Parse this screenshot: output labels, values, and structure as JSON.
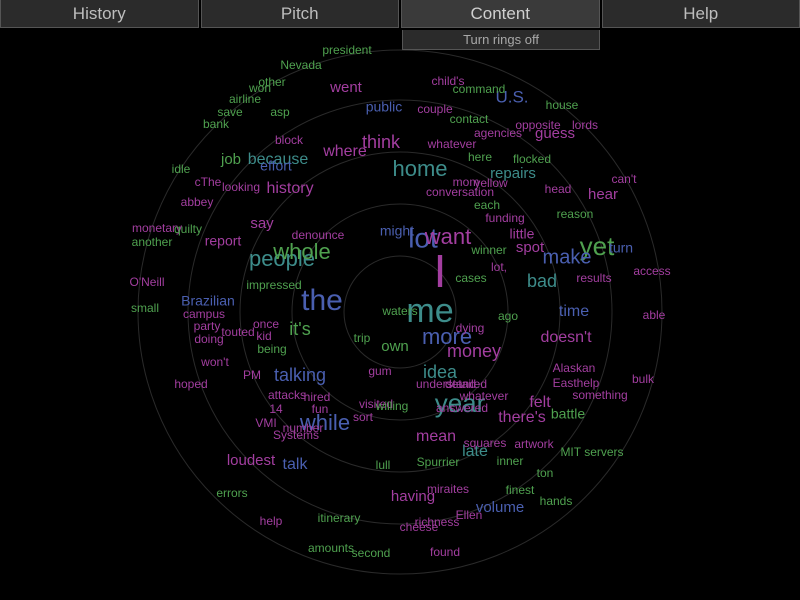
{
  "tabs": [
    {
      "label": "History",
      "active": false
    },
    {
      "label": "Pitch",
      "active": false
    },
    {
      "label": "Content",
      "active": true
    },
    {
      "label": "Help",
      "active": false
    }
  ],
  "content_menu": {
    "option": "Turn rings off"
  },
  "colors": {
    "green": "#4fa14f",
    "purple": "#a33ea0",
    "blue": "#4a5fb0",
    "teal": "#3d8c8a",
    "ring": "#2a2a2a",
    "background": "#000000"
  },
  "words": [
    {
      "text": "I",
      "color": "purple",
      "size": 46
    },
    {
      "text": "me",
      "color": "teal",
      "size": 34
    },
    {
      "text": "lot",
      "color": "blue",
      "size": 28
    },
    {
      "text": "want",
      "color": "purple",
      "size": 22
    },
    {
      "text": "the",
      "color": "blue",
      "size": 30
    },
    {
      "text": "people",
      "color": "teal",
      "size": 22
    },
    {
      "text": "whole",
      "color": "green",
      "size": 22
    },
    {
      "text": "yet",
      "color": "green",
      "size": 26
    },
    {
      "text": "year",
      "color": "teal",
      "size": 26
    },
    {
      "text": "more",
      "color": "blue",
      "size": 22
    },
    {
      "text": "money",
      "color": "purple",
      "size": 18
    },
    {
      "text": "idea",
      "color": "teal",
      "size": 18
    },
    {
      "text": "while",
      "color": "blue",
      "size": 22
    },
    {
      "text": "home",
      "color": "teal",
      "size": 22
    },
    {
      "text": "think",
      "color": "purple",
      "size": 18
    },
    {
      "text": "because",
      "color": "teal",
      "size": 16
    },
    {
      "text": "history",
      "color": "purple",
      "size": 16
    },
    {
      "text": "where",
      "color": "purple",
      "size": 16
    },
    {
      "text": "it's",
      "color": "green",
      "size": 18
    },
    {
      "text": "talking",
      "color": "blue",
      "size": 18
    },
    {
      "text": "make",
      "color": "blue",
      "size": 20
    },
    {
      "text": "bad",
      "color": "teal",
      "size": 18
    },
    {
      "text": "time",
      "color": "blue",
      "size": 16
    },
    {
      "text": "doesn't",
      "color": "purple",
      "size": 16
    },
    {
      "text": "there's",
      "color": "purple",
      "size": 16
    },
    {
      "text": "felt",
      "color": "purple",
      "size": 16
    },
    {
      "text": "battle",
      "color": "green",
      "size": 14
    },
    {
      "text": "mean",
      "color": "purple",
      "size": 16
    },
    {
      "text": "late",
      "color": "teal",
      "size": 16
    },
    {
      "text": "volume",
      "color": "blue",
      "size": 15
    },
    {
      "text": "having",
      "color": "purple",
      "size": 15
    },
    {
      "text": "loudest",
      "color": "purple",
      "size": 15
    },
    {
      "text": "talk",
      "color": "blue",
      "size": 16
    },
    {
      "text": "U.S.",
      "color": "blue",
      "size": 17
    },
    {
      "text": "guess",
      "color": "purple",
      "size": 15
    },
    {
      "text": "hear",
      "color": "purple",
      "size": 15
    },
    {
      "text": "repairs",
      "color": "teal",
      "size": 15
    },
    {
      "text": "spot",
      "color": "purple",
      "size": 15
    },
    {
      "text": "little",
      "color": "purple",
      "size": 14
    },
    {
      "text": "turn",
      "color": "blue",
      "size": 14
    },
    {
      "text": "access",
      "color": "purple",
      "size": 12
    },
    {
      "text": "say",
      "color": "purple",
      "size": 15
    },
    {
      "text": "job",
      "color": "green",
      "size": 15
    },
    {
      "text": "effort",
      "color": "blue",
      "size": 14
    },
    {
      "text": "public",
      "color": "blue",
      "size": 14
    },
    {
      "text": "went",
      "color": "purple",
      "size": 15
    },
    {
      "text": "own",
      "color": "green",
      "size": 15
    },
    {
      "text": "might",
      "color": "blue",
      "size": 14
    },
    {
      "text": "report",
      "color": "purple",
      "size": 14
    },
    {
      "text": "Brazilian",
      "color": "blue",
      "size": 14
    },
    {
      "text": "dying",
      "color": "purple",
      "size": 12
    },
    {
      "text": "president",
      "color": "green",
      "size": 12
    },
    {
      "text": "Nevada",
      "color": "green",
      "size": 12
    },
    {
      "text": "airline",
      "color": "green",
      "size": 12
    },
    {
      "text": "bank",
      "color": "green",
      "size": 12
    },
    {
      "text": "idle",
      "color": "green",
      "size": 12
    },
    {
      "text": "monetary",
      "color": "purple",
      "size": 12
    },
    {
      "text": "another",
      "color": "green",
      "size": 12
    },
    {
      "text": "O'Neill",
      "color": "purple",
      "size": 12
    },
    {
      "text": "small",
      "color": "green",
      "size": 12
    },
    {
      "text": "hoped",
      "color": "purple",
      "size": 12
    },
    {
      "text": "errors",
      "color": "green",
      "size": 12
    },
    {
      "text": "help",
      "color": "purple",
      "size": 12
    },
    {
      "text": "amounts",
      "color": "green",
      "size": 12
    },
    {
      "text": "second",
      "color": "green",
      "size": 12
    },
    {
      "text": "found",
      "color": "purple",
      "size": 12
    },
    {
      "text": "itinerary",
      "color": "green",
      "size": 12
    },
    {
      "text": "MIT servers",
      "color": "green",
      "size": 12
    },
    {
      "text": "ton",
      "color": "green",
      "size": 12
    },
    {
      "text": "bulk",
      "color": "purple",
      "size": 12
    },
    {
      "text": "able",
      "color": "purple",
      "size": 12
    },
    {
      "text": "can't",
      "color": "purple",
      "size": 12
    },
    {
      "text": "reason",
      "color": "green",
      "size": 12
    },
    {
      "text": "head",
      "color": "purple",
      "size": 12
    },
    {
      "text": "house",
      "color": "green",
      "size": 12
    },
    {
      "text": "lords",
      "color": "purple",
      "size": 12
    },
    {
      "text": "command",
      "color": "green",
      "size": 12
    },
    {
      "text": "child's",
      "color": "purple",
      "size": 12
    },
    {
      "text": "couple",
      "color": "purple",
      "size": 12
    },
    {
      "text": "contact",
      "color": "green",
      "size": 12
    },
    {
      "text": "agencies",
      "color": "purple",
      "size": 12
    },
    {
      "text": "opposite",
      "color": "purple",
      "size": 12
    },
    {
      "text": "flocked",
      "color": "green",
      "size": 12
    },
    {
      "text": "conversation",
      "color": "purple",
      "size": 12
    },
    {
      "text": "funding",
      "color": "purple",
      "size": 12
    },
    {
      "text": "winner",
      "color": "green",
      "size": 12
    },
    {
      "text": "results",
      "color": "purple",
      "size": 12
    },
    {
      "text": "Alaskan",
      "color": "purple",
      "size": 12
    },
    {
      "text": "Easthelp",
      "color": "purple",
      "size": 12
    },
    {
      "text": "something",
      "color": "purple",
      "size": 12
    },
    {
      "text": "Spurrier",
      "color": "green",
      "size": 12
    },
    {
      "text": "finest",
      "color": "green",
      "size": 12
    },
    {
      "text": "hands",
      "color": "green",
      "size": 12
    },
    {
      "text": "Ellen",
      "color": "purple",
      "size": 12
    },
    {
      "text": "richness",
      "color": "purple",
      "size": 12
    },
    {
      "text": "cheese",
      "color": "purple",
      "size": 12
    },
    {
      "text": "visited",
      "color": "purple",
      "size": 12
    },
    {
      "text": "lull",
      "color": "green",
      "size": 12
    },
    {
      "text": "miraites",
      "color": "purple",
      "size": 12
    },
    {
      "text": "squares",
      "color": "purple",
      "size": 12
    },
    {
      "text": "artwork",
      "color": "purple",
      "size": 12
    },
    {
      "text": "inner",
      "color": "green",
      "size": 12
    },
    {
      "text": "won't",
      "color": "purple",
      "size": 12
    },
    {
      "text": "PM",
      "color": "purple",
      "size": 12
    },
    {
      "text": "being",
      "color": "green",
      "size": 12
    },
    {
      "text": "party",
      "color": "purple",
      "size": 12
    },
    {
      "text": "doing",
      "color": "purple",
      "size": 12
    },
    {
      "text": "campus",
      "color": "purple",
      "size": 12
    },
    {
      "text": "touted",
      "color": "purple",
      "size": 12
    },
    {
      "text": "once",
      "color": "purple",
      "size": 12
    },
    {
      "text": "kid",
      "color": "purple",
      "size": 12
    },
    {
      "text": "impressed",
      "color": "green",
      "size": 12
    },
    {
      "text": "denounce",
      "color": "purple",
      "size": 12
    },
    {
      "text": "abbey",
      "color": "purple",
      "size": 12
    },
    {
      "text": "quilty",
      "color": "green",
      "size": 12
    },
    {
      "text": "cThe",
      "color": "purple",
      "size": 12
    },
    {
      "text": "looking",
      "color": "purple",
      "size": 12
    },
    {
      "text": "save",
      "color": "green",
      "size": 12
    },
    {
      "text": "asp",
      "color": "green",
      "size": 12
    },
    {
      "text": "other",
      "color": "green",
      "size": 12
    },
    {
      "text": "won",
      "color": "green",
      "size": 12
    },
    {
      "text": "block",
      "color": "purple",
      "size": 12
    },
    {
      "text": "whatever",
      "color": "purple",
      "size": 12
    },
    {
      "text": "here",
      "color": "green",
      "size": 12
    },
    {
      "text": "cases",
      "color": "green",
      "size": 12
    },
    {
      "text": "lot,",
      "color": "purple",
      "size": 12
    },
    {
      "text": "each",
      "color": "green",
      "size": 12
    },
    {
      "text": "mom",
      "color": "purple",
      "size": 12
    },
    {
      "text": "yellow",
      "color": "purple",
      "size": 12
    },
    {
      "text": "detailed",
      "color": "purple",
      "size": 12
    },
    {
      "text": "hired",
      "color": "purple",
      "size": 12
    },
    {
      "text": "fun",
      "color": "purple",
      "size": 12
    },
    {
      "text": "14",
      "color": "purple",
      "size": 12
    },
    {
      "text": "VMI",
      "color": "purple",
      "size": 12
    },
    {
      "text": "attacks",
      "color": "purple",
      "size": 12
    },
    {
      "text": "Systems",
      "color": "purple",
      "size": 12
    },
    {
      "text": "number",
      "color": "purple",
      "size": 12
    },
    {
      "text": "willing",
      "color": "green",
      "size": 12
    },
    {
      "text": "whatever",
      "color": "purple",
      "size": 12
    },
    {
      "text": "ago",
      "color": "green",
      "size": 12
    },
    {
      "text": "understand",
      "color": "purple",
      "size": 12
    },
    {
      "text": "answered",
      "color": "purple",
      "size": 12
    },
    {
      "text": "sort",
      "color": "purple",
      "size": 12
    },
    {
      "text": "trip",
      "color": "green",
      "size": 12
    },
    {
      "text": "gum",
      "color": "purple",
      "size": 12
    },
    {
      "text": "waters",
      "color": "green",
      "size": 12
    }
  ]
}
